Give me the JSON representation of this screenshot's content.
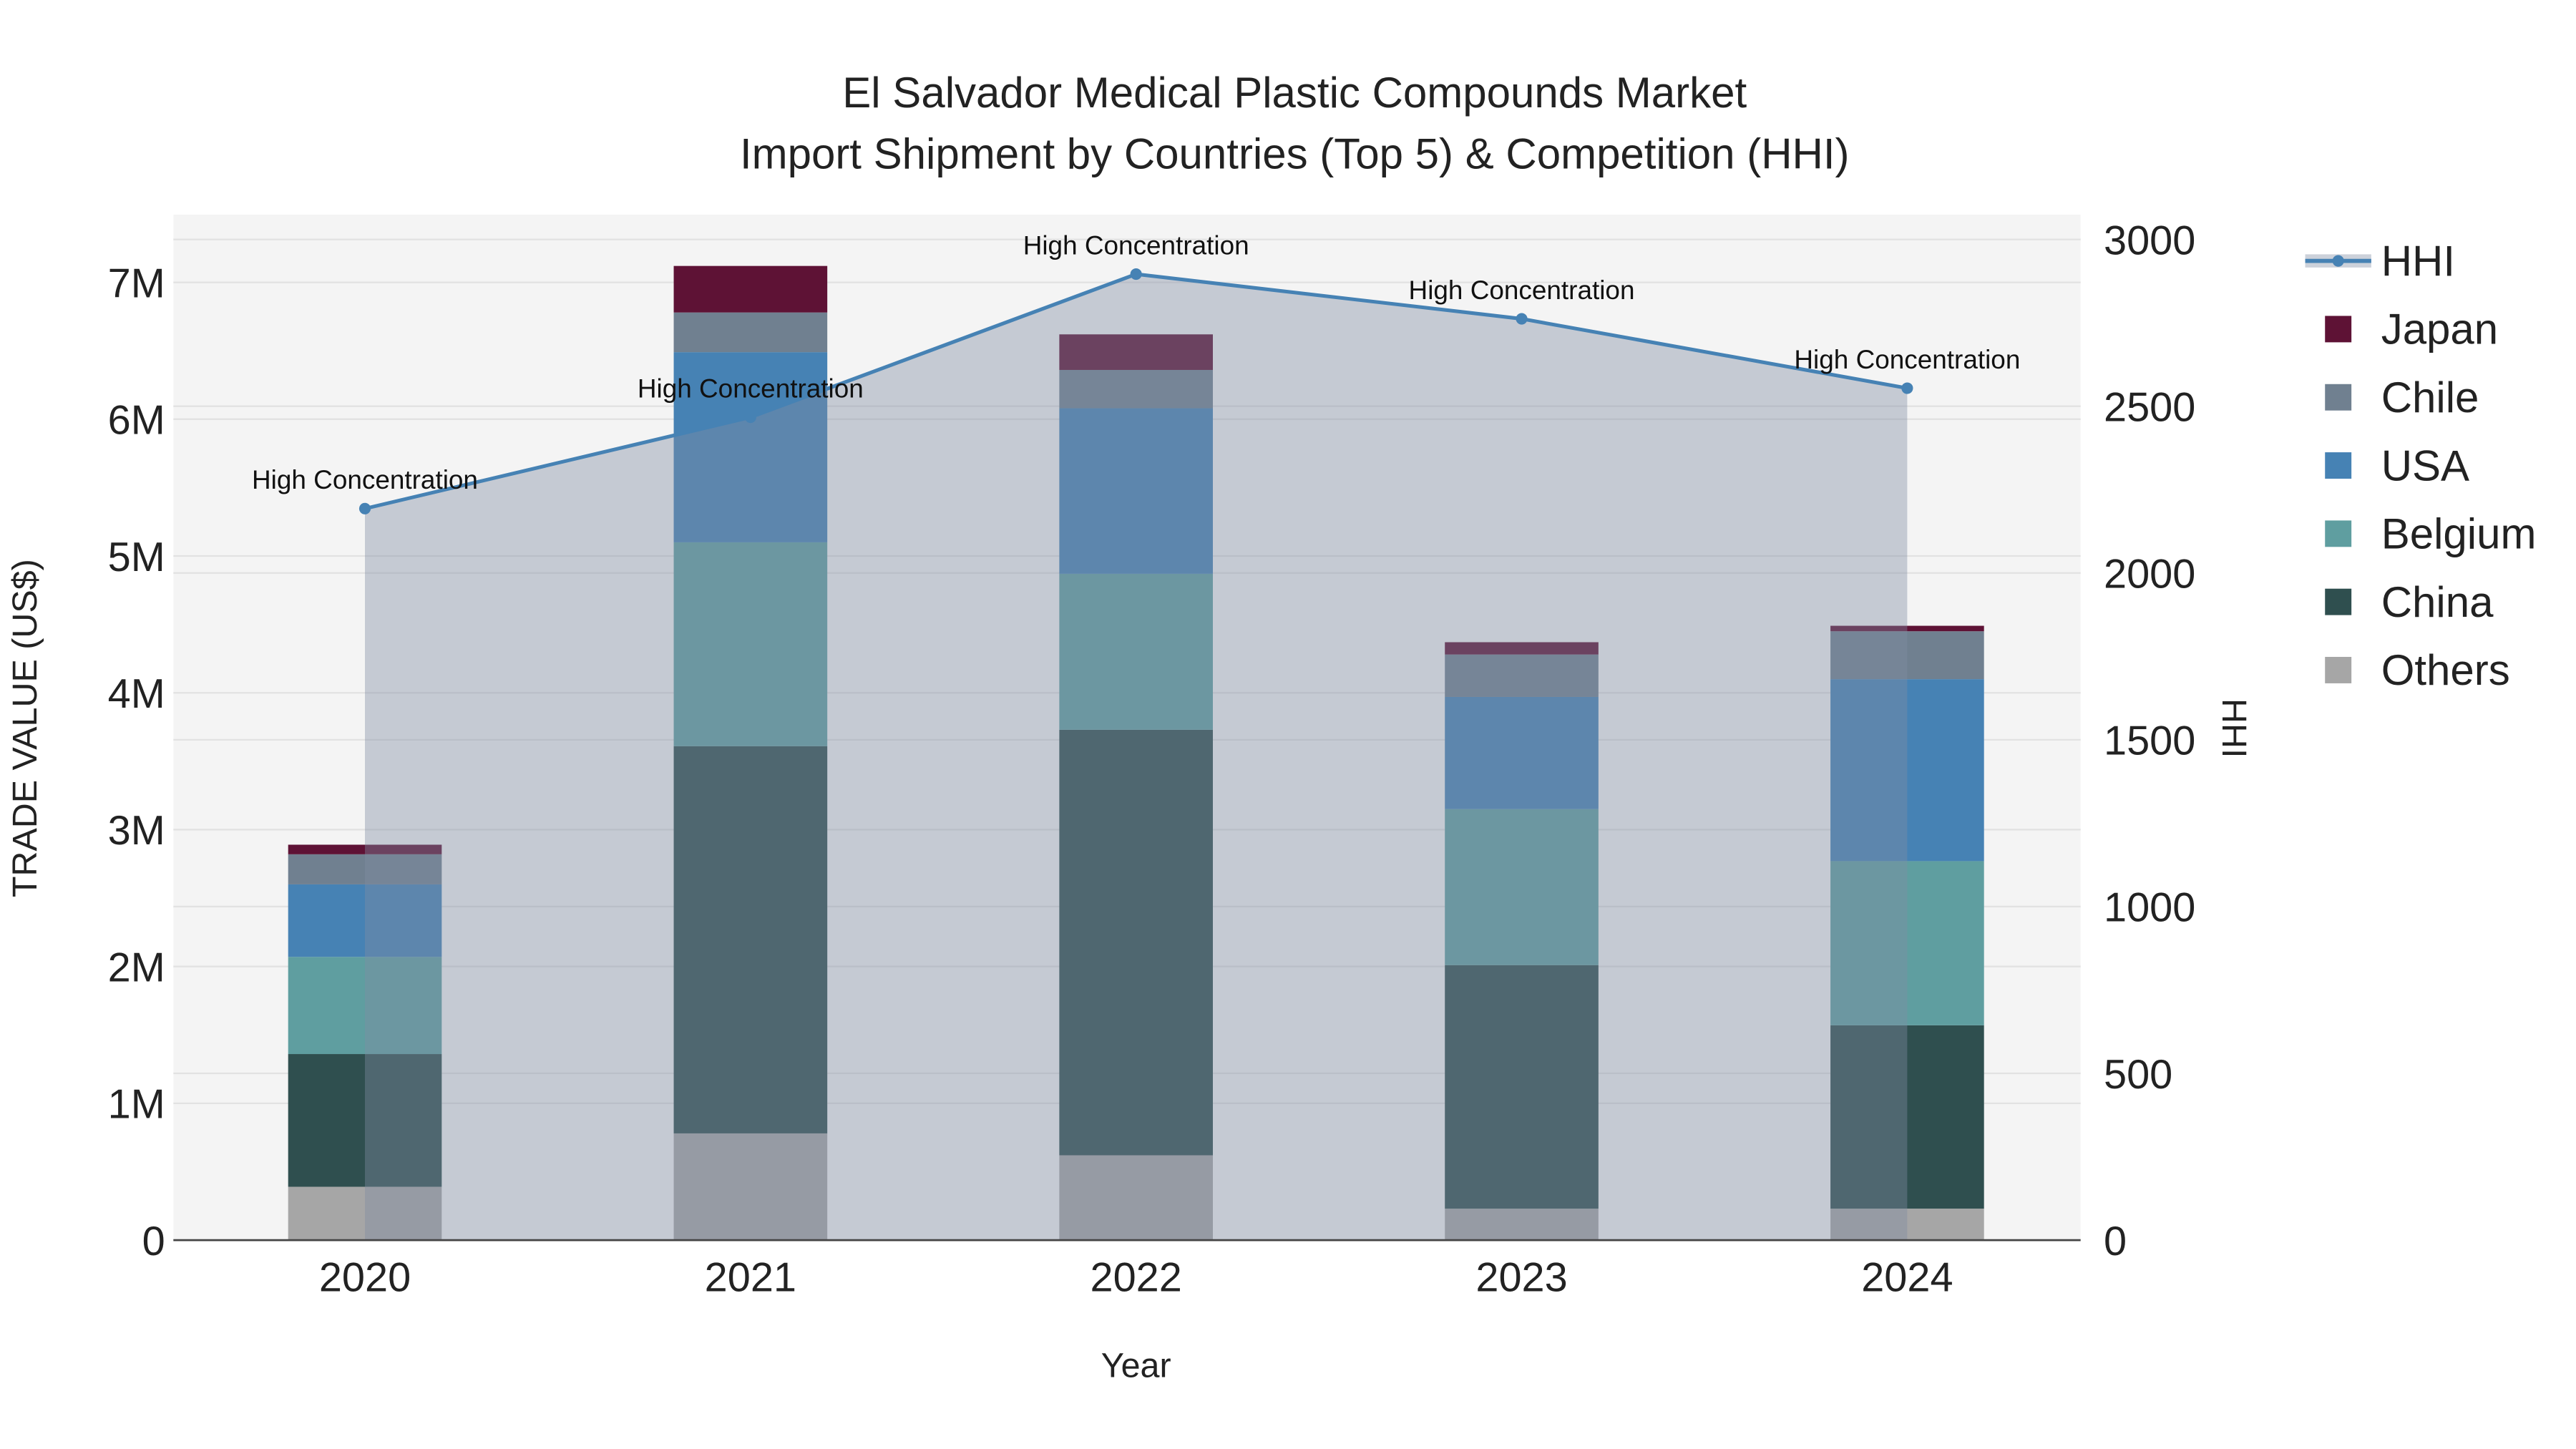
{
  "chart_data": {
    "type": "bar",
    "title": "El Salvador Medical Plastic Compounds Market",
    "subtitle": "Import Shipment by Countries (Top 5) & Competition (HHI)",
    "xlabel": "Year",
    "ylabel": "TRADE VALUE (US$)",
    "y2label": "HHI",
    "categories": [
      "2020",
      "2021",
      "2022",
      "2023",
      "2024"
    ],
    "ylim": [
      0,
      7500000
    ],
    "y2lim": [
      0,
      3100
    ],
    "yticks": [
      0,
      1000000,
      2000000,
      3000000,
      4000000,
      5000000,
      6000000,
      7000000
    ],
    "ytick_labels": [
      "0",
      "1M",
      "2M",
      "3M",
      "4M",
      "5M",
      "6M",
      "7M"
    ],
    "y2ticks": [
      0,
      500,
      1000,
      1500,
      2000,
      2500,
      3000
    ],
    "y2tick_labels": [
      "0",
      "500",
      "1000",
      "1500",
      "2000",
      "2500",
      "3000"
    ],
    "series": [
      {
        "name": "Others",
        "color": "#a6a6a6",
        "values": [
          390000,
          780000,
          620000,
          230000,
          230000
        ]
      },
      {
        "name": "China",
        "color": "#2f4f4f",
        "values": [
          970000,
          2830000,
          3110000,
          1780000,
          1340000
        ]
      },
      {
        "name": "Belgium",
        "color": "#5f9ea0",
        "values": [
          710000,
          1490000,
          1140000,
          1140000,
          1200000
        ]
      },
      {
        "name": "USA",
        "color": "#4682b4",
        "values": [
          530000,
          1390000,
          1210000,
          820000,
          1330000
        ]
      },
      {
        "name": "Chile",
        "color": "#708090",
        "values": [
          220000,
          290000,
          280000,
          310000,
          350000
        ]
      },
      {
        "name": "Japan",
        "color": "#5e1235",
        "values": [
          70000,
          340000,
          260000,
          90000,
          40000
        ]
      }
    ],
    "hhi": {
      "name": "HHI",
      "color": "#4682b4",
      "values": [
        2193,
        2467,
        2896,
        2762,
        2554
      ],
      "annotations": [
        "High Concentration",
        "High Concentration",
        "High Concentration",
        "High Concentration",
        "High Concentration"
      ]
    },
    "legend_order": [
      "HHI",
      "Japan",
      "Chile",
      "USA",
      "Belgium",
      "China",
      "Others"
    ],
    "legend": "right",
    "grid": true
  }
}
